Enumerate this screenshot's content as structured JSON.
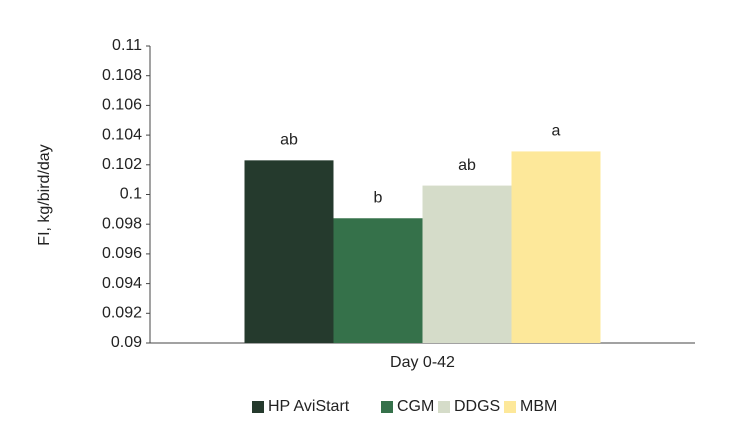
{
  "chart_data": {
    "type": "bar",
    "y_label": "FI, kg/bird/day",
    "categories": [
      "Day 0-42"
    ],
    "series": [
      {
        "name": "HP AviStart",
        "color": "#253a2d",
        "values": [
          0.1023
        ],
        "annotations": [
          "ab"
        ]
      },
      {
        "name": "CGM",
        "color": "#35714a",
        "values": [
          0.0984
        ],
        "annotations": [
          "b"
        ]
      },
      {
        "name": "DDGS",
        "color": "#d5dcc9",
        "values": [
          0.1006
        ],
        "annotations": [
          "ab"
        ]
      },
      {
        "name": "MBM",
        "color": "#fde89a",
        "values": [
          0.1029
        ],
        "annotations": [
          "a"
        ]
      }
    ],
    "ylim": [
      0.09,
      0.11
    ],
    "yticks": [
      0.09,
      0.092,
      0.094,
      0.096,
      0.098,
      0.1,
      0.102,
      0.104,
      0.106,
      0.108,
      0.11
    ],
    "grid": false,
    "legend": "bottom"
  }
}
